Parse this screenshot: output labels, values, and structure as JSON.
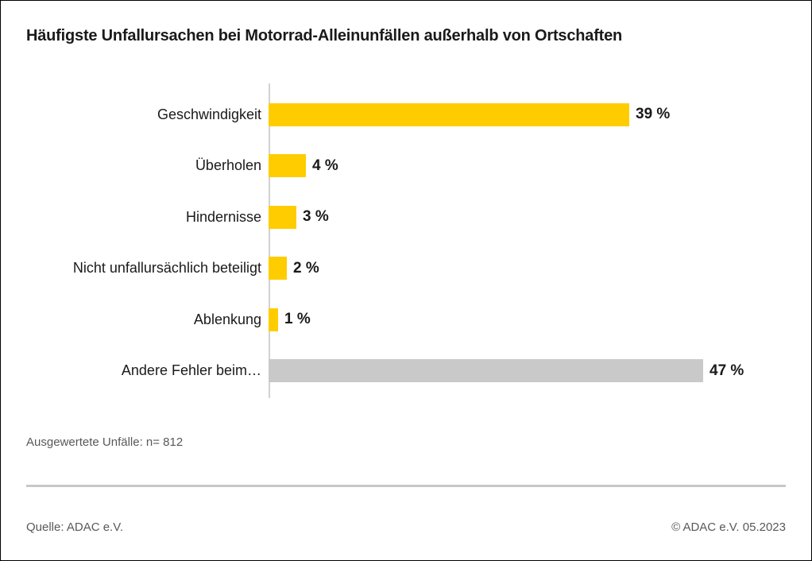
{
  "title": "Häufigste Unfallursachen bei Motorrad-Alleinunfällen außerhalb von Ortschaften",
  "chart_data": {
    "type": "bar",
    "orientation": "horizontal",
    "title": "Häufigste Unfallursachen bei Motorrad-Alleinunfällen außerhalb von Ortschaften",
    "categories": [
      "Geschwindigkeit",
      "Überholen",
      "Hindernisse",
      "Nicht unfallursächlich beteiligt",
      "Ablenkung",
      "Andere Fehler beim…"
    ],
    "values": [
      39,
      4,
      3,
      2,
      1,
      47
    ],
    "value_labels": [
      "39 %",
      "4 %",
      "3 %",
      "2 %",
      "1 %",
      "47 %"
    ],
    "bar_colors": [
      "#FFCC00",
      "#FFCC00",
      "#FFCC00",
      "#FFCC00",
      "#FFCC00",
      "#C9C9C9"
    ],
    "unit": "%",
    "xlim": [
      0,
      47
    ],
    "grid": false,
    "legend": "none"
  },
  "footnote": "Ausgewertete Unfälle: n= 812",
  "footer": {
    "source": "Quelle: ADAC e.V.",
    "copyright": "© ADAC e.V. 05.2023"
  },
  "colors": {
    "accent_yellow": "#FFCC00",
    "bar_gray": "#C9C9C9",
    "text_dark": "#1A1A1A",
    "text_gray": "#595959",
    "axis_gray": "#D2D2D2",
    "divider_gray": "#C8C8C8"
  }
}
